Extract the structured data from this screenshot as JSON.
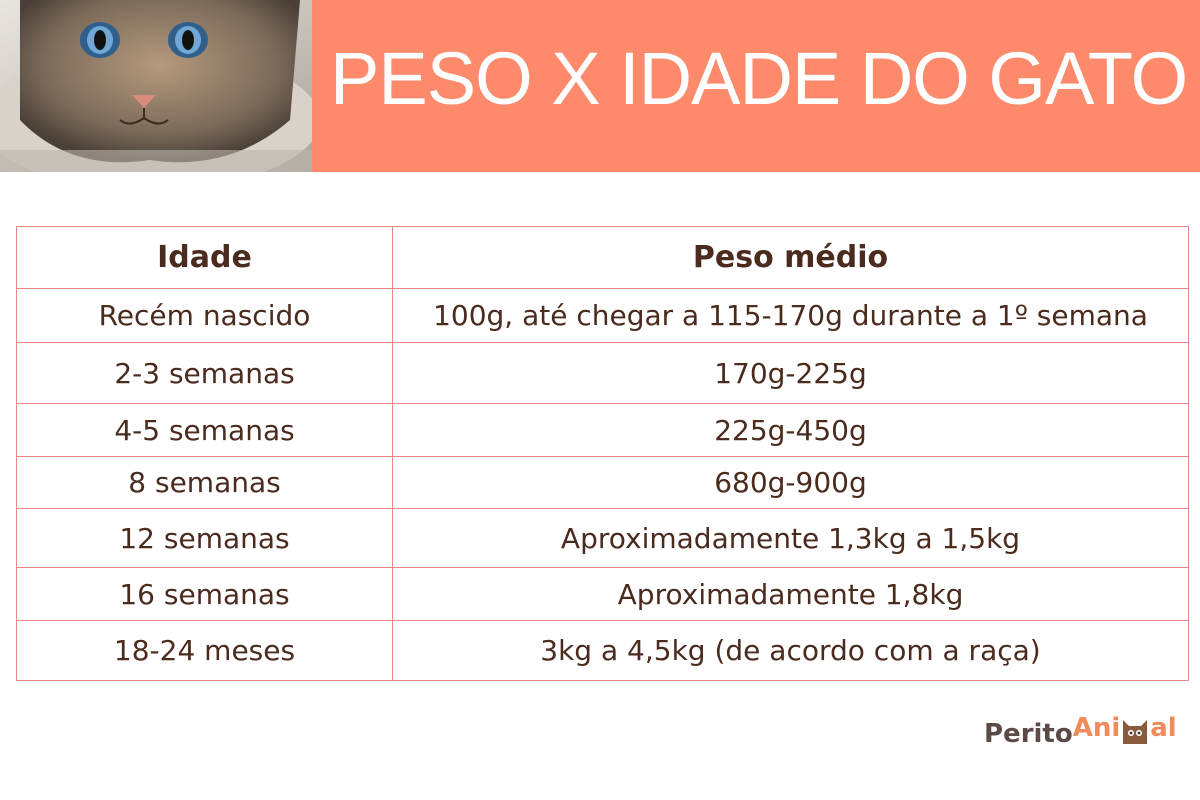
{
  "header": {
    "title": "PESO X IDADE DO GATO"
  },
  "table": {
    "header": [
      "Idade",
      "Peso médio"
    ],
    "rows": [
      [
        "Recém nascido",
        "100g, até chegar a 115-170g durante a 1º semana"
      ],
      [
        "2-3 semanas",
        "170g-225g"
      ],
      [
        "4-5 semanas",
        "225g-450g"
      ],
      [
        "8 semanas",
        "680g-900g"
      ],
      [
        "12 semanas",
        "Aproximadamente 1,3kg a 1,5kg"
      ],
      [
        "16 semanas",
        "Aproximadamente 1,8kg"
      ],
      [
        "18-24 meses",
        "3kg a 4,5kg (de acordo com a raça)"
      ]
    ]
  },
  "logo": {
    "part1": "Perito",
    "part2": "Ani",
    "part3": "al"
  }
}
